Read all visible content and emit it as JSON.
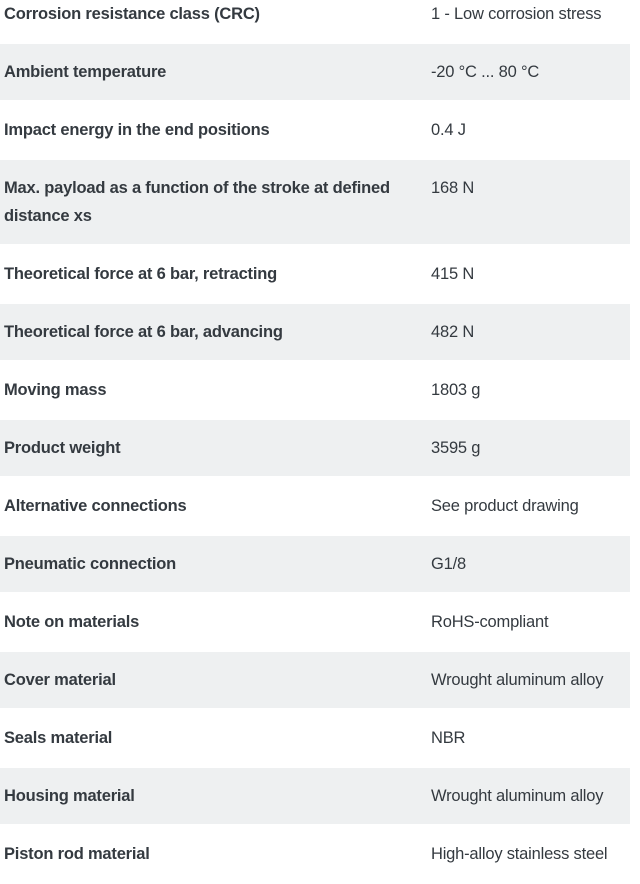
{
  "theme": {
    "page_bg": "#ffffff",
    "row_alt_bg": "#eef0f1",
    "text_color": "#343a40"
  },
  "spec_table": {
    "rows": [
      {
        "label": "Corrosion resistance class (CRC)",
        "value": "1 - Low corrosion stress"
      },
      {
        "label": "Ambient temperature",
        "value": "-20 °C ... 80 °C"
      },
      {
        "label": "Impact energy in the end positions",
        "value": "0.4 J"
      },
      {
        "label": "Max. payload as a function of the stroke at defined\ndistance xs",
        "value": "168 N"
      },
      {
        "label": "Theoretical force at 6 bar, retracting",
        "value": "415 N"
      },
      {
        "label": "Theoretical force at 6 bar, advancing",
        "value": "482 N"
      },
      {
        "label": "Moving mass",
        "value": "1803 g"
      },
      {
        "label": "Product weight",
        "value": "3595 g"
      },
      {
        "label": "Alternative connections",
        "value": "See product drawing"
      },
      {
        "label": "Pneumatic connection",
        "value": "G1/8"
      },
      {
        "label": "Note on materials",
        "value": "RoHS-compliant"
      },
      {
        "label": "Cover material",
        "value": "Wrought aluminum alloy"
      },
      {
        "label": "Seals material",
        "value": "NBR"
      },
      {
        "label": "Housing material",
        "value": "Wrought aluminum alloy"
      },
      {
        "label": "Piston rod material",
        "value": "High-alloy stainless steel"
      }
    ]
  }
}
